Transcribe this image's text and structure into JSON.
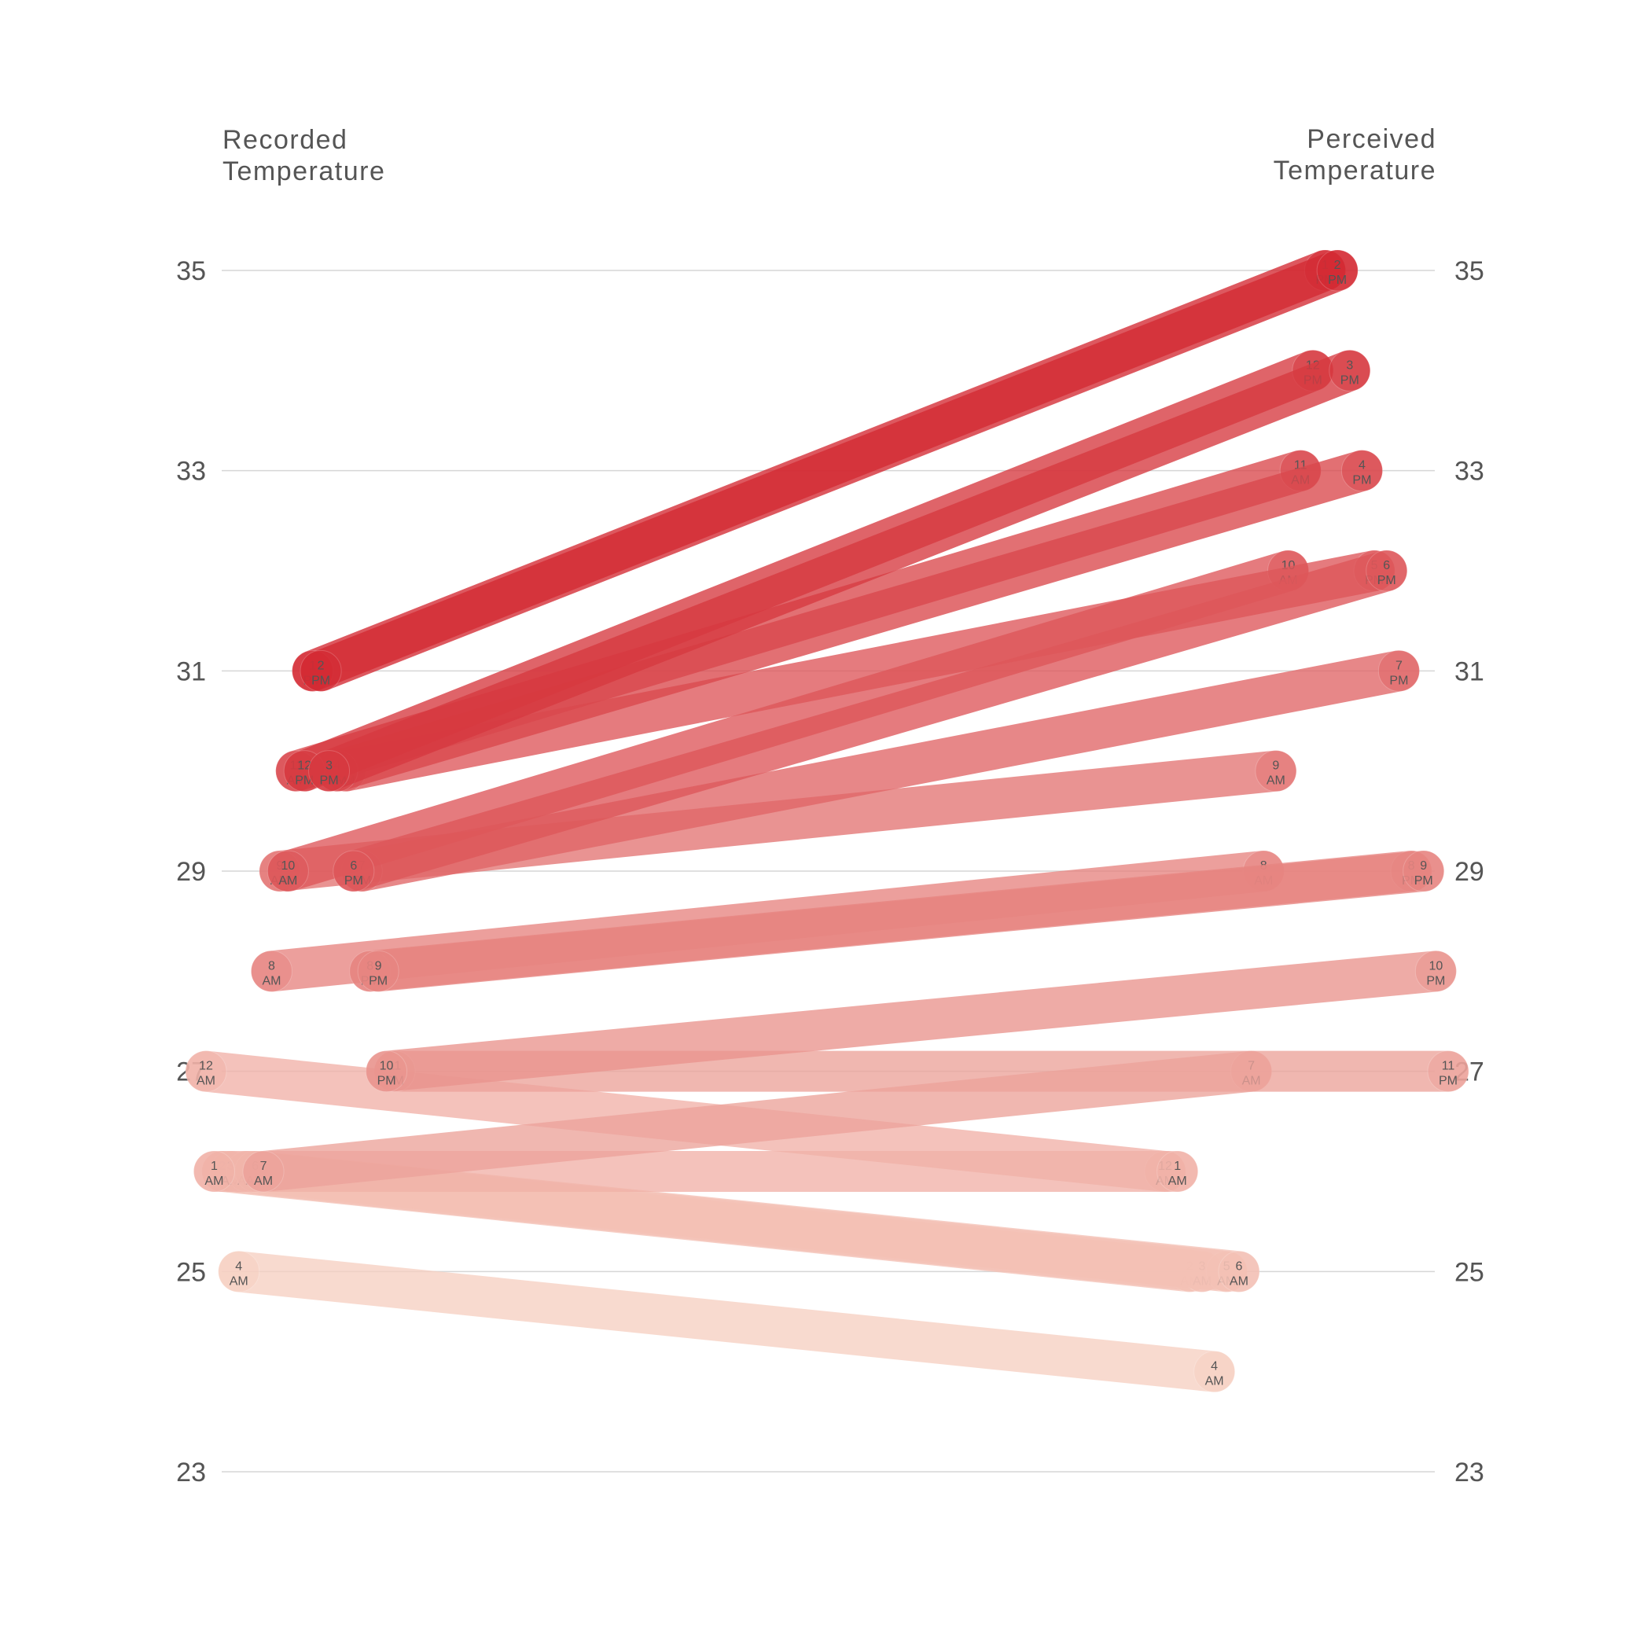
{
  "chart_data": {
    "type": "slope",
    "left_title": [
      "Recorded",
      "Temperature"
    ],
    "right_title": [
      "Perceived",
      "Temperature"
    ],
    "ylim": [
      23,
      35
    ],
    "y_ticks": [
      "23",
      "25",
      "27",
      "29",
      "31",
      "33",
      "35"
    ],
    "grid": true,
    "series": [
      {
        "hour": "12",
        "period": "AM",
        "recorded": 27,
        "perceived": 26
      },
      {
        "hour": "1",
        "period": "AM",
        "recorded": 26,
        "perceived": 26
      },
      {
        "hour": "2",
        "period": "AM",
        "recorded": 26,
        "perceived": 25
      },
      {
        "hour": "3",
        "period": "AM",
        "recorded": 26,
        "perceived": 25
      },
      {
        "hour": "4",
        "period": "AM",
        "recorded": 25,
        "perceived": 24
      },
      {
        "hour": "5",
        "period": "AM",
        "recorded": 26,
        "perceived": 25
      },
      {
        "hour": "6",
        "period": "AM",
        "recorded": 26,
        "perceived": 25
      },
      {
        "hour": "7",
        "period": "AM",
        "recorded": 26,
        "perceived": 27
      },
      {
        "hour": "8",
        "period": "AM",
        "recorded": 28,
        "perceived": 29
      },
      {
        "hour": "9",
        "period": "AM",
        "recorded": 29,
        "perceived": 30
      },
      {
        "hour": "10",
        "period": "AM",
        "recorded": 29,
        "perceived": 32
      },
      {
        "hour": "11",
        "period": "AM",
        "recorded": 30,
        "perceived": 33
      },
      {
        "hour": "12",
        "period": "PM",
        "recorded": 30,
        "perceived": 34
      },
      {
        "hour": "1",
        "period": "PM",
        "recorded": 31,
        "perceived": 35
      },
      {
        "hour": "2",
        "period": "PM",
        "recorded": 31,
        "perceived": 35
      },
      {
        "hour": "3",
        "period": "PM",
        "recorded": 30,
        "perceived": 34
      },
      {
        "hour": "4",
        "period": "PM",
        "recorded": 30,
        "perceived": 33
      },
      {
        "hour": "5",
        "period": "PM",
        "recorded": 30,
        "perceived": 32
      },
      {
        "hour": "6",
        "period": "PM",
        "recorded": 29,
        "perceived": 32
      },
      {
        "hour": "7",
        "period": "PM",
        "recorded": 29,
        "perceived": 31
      },
      {
        "hour": "8",
        "period": "PM",
        "recorded": 28,
        "perceived": 29
      },
      {
        "hour": "9",
        "period": "PM",
        "recorded": 28,
        "perceived": 29
      },
      {
        "hour": "10",
        "period": "PM",
        "recorded": 27,
        "perceived": 28
      },
      {
        "hour": "11",
        "period": "PM",
        "recorded": 27,
        "perceived": 27
      }
    ]
  },
  "colors": {
    "low": "#f7d0c2",
    "high": "#d42a33",
    "grid": "#d6d6d6",
    "text": "#555555"
  }
}
